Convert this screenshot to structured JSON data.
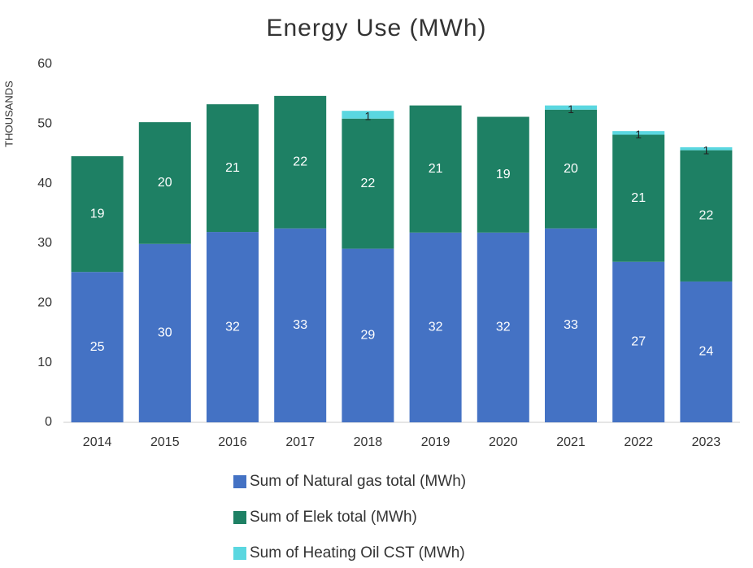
{
  "chart_data": {
    "type": "stacked_bar",
    "title": "Energy Use (MWh)",
    "y_label": "THOUSANDS",
    "categories": [
      "2014",
      "2015",
      "2016",
      "2017",
      "2018",
      "2019",
      "2020",
      "2021",
      "2022",
      "2023"
    ],
    "series": [
      {
        "name": "Sum of Natural gas total (MWh)",
        "color": "#4472c4",
        "values": [
          25.2,
          29.9,
          31.9,
          32.5,
          29.1,
          31.8,
          31.8,
          32.5,
          26.9,
          23.6
        ],
        "value_labels": [
          "25",
          "30",
          "32",
          "33",
          "29",
          "32",
          "32",
          "33",
          "27",
          "24"
        ]
      },
      {
        "name": "Sum of Elek total (MWh)",
        "color": "#1e8064",
        "values": [
          19.4,
          20.4,
          21.4,
          22.2,
          21.8,
          21.3,
          19.4,
          19.9,
          21.3,
          22.0
        ],
        "value_labels": [
          "19",
          "20",
          "21",
          "22",
          "22",
          "21",
          "19",
          "20",
          "21",
          "22"
        ]
      },
      {
        "name": "Sum of Heating Oil CST (MWh)",
        "color": "#5ad7e0",
        "values": [
          0,
          0,
          0,
          0,
          1.3,
          0,
          0,
          0.7,
          0.6,
          0.5
        ],
        "value_labels": [
          null,
          null,
          null,
          null,
          "1",
          null,
          null,
          "1",
          "1",
          "1"
        ]
      }
    ],
    "ylim": [
      0,
      60
    ],
    "yticks": [
      0,
      10,
      20,
      30,
      40,
      50,
      60
    ]
  }
}
